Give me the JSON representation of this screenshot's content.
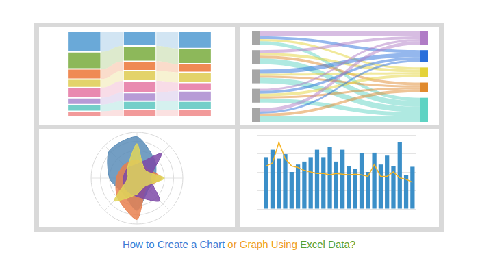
{
  "caption": [
    {
      "text": "How to Create a Chart",
      "color": "#3a7bd5"
    },
    {
      "text": "or Graph Using",
      "color": "#f0a020"
    },
    {
      "text": "Excel Data?",
      "color": "#5aa02c"
    }
  ],
  "chart_data": [
    {
      "type": "alluvial",
      "stacked": true,
      "grid": false,
      "tick_labels": false,
      "categories": [
        null,
        null,
        null
      ],
      "ylim": [
        0,
        100
      ],
      "yticks": [
        0,
        100
      ],
      "series": [
        {
          "color": "#6aa9d8",
          "values": [
            24,
            17,
            20
          ]
        },
        {
          "color": "#8db85a",
          "values": [
            20,
            18,
            18
          ]
        },
        {
          "color": "#ef8a54",
          "values": [
            12,
            11,
            10
          ]
        },
        {
          "color": "#e3d36a",
          "values": [
            10,
            12,
            12
          ]
        },
        {
          "color": "#e98ab0",
          "values": [
            12,
            14,
            10
          ]
        },
        {
          "color": "#b79bd6",
          "values": [
            8,
            10,
            12
          ]
        },
        {
          "color": "#74cfc9",
          "values": [
            8,
            10,
            10
          ]
        },
        {
          "color": "#f29a9a",
          "values": [
            6,
            8,
            8
          ]
        }
      ]
    },
    {
      "type": "sankey",
      "sources": [
        {
          "color": "#a6a6a6"
        },
        {
          "color": "#a6a6a6"
        },
        {
          "color": "#a6a6a6"
        },
        {
          "color": "#a6a6a6"
        },
        {
          "color": "#a6a6a6"
        }
      ],
      "targets": [
        {
          "color": "#b07cc6"
        },
        {
          "color": "#2a6fdb"
        },
        {
          "color": "#e4d33a"
        },
        {
          "color": "#e08a2e"
        },
        {
          "color": "#5fd3c3"
        }
      ],
      "links": [
        {
          "source": 0,
          "target": 0,
          "value": 8
        },
        {
          "source": 0,
          "target": 1,
          "value": 4
        },
        {
          "source": 0,
          "target": 2,
          "value": 3
        },
        {
          "source": 0,
          "target": 4,
          "value": 5
        },
        {
          "source": 1,
          "target": 0,
          "value": 4
        },
        {
          "source": 1,
          "target": 2,
          "value": 4
        },
        {
          "source": 1,
          "target": 3,
          "value": 4
        },
        {
          "source": 1,
          "target": 4,
          "value": 8
        },
        {
          "source": 2,
          "target": 1,
          "value": 6
        },
        {
          "source": 2,
          "target": 2,
          "value": 3
        },
        {
          "source": 2,
          "target": 3,
          "value": 3
        },
        {
          "source": 2,
          "target": 4,
          "value": 8
        },
        {
          "source": 3,
          "target": 0,
          "value": 3
        },
        {
          "source": 3,
          "target": 1,
          "value": 4
        },
        {
          "source": 3,
          "target": 2,
          "value": 4
        },
        {
          "source": 3,
          "target": 3,
          "value": 3
        },
        {
          "source": 3,
          "target": 4,
          "value": 6
        },
        {
          "source": 4,
          "target": 0,
          "value": 5
        },
        {
          "source": 4,
          "target": 1,
          "value": 3
        },
        {
          "source": 4,
          "target": 3,
          "value": 4
        },
        {
          "source": 4,
          "target": 4,
          "value": 8
        }
      ]
    },
    {
      "type": "radar",
      "grid": true,
      "tick_labels": false,
      "categories": [
        null,
        null,
        null,
        null,
        null,
        null,
        null,
        null
      ],
      "ylim": [
        0,
        100
      ],
      "yticks": [
        0,
        20,
        40,
        60,
        80,
        100
      ],
      "series": [
        {
          "color": "#5b8db8",
          "values": [
            90,
            55,
            40,
            35,
            70,
            45,
            60,
            85
          ]
        },
        {
          "color": "#e9804f",
          "values": [
            40,
            30,
            55,
            30,
            90,
            60,
            45,
            40
          ]
        },
        {
          "color": "#7e4aa8",
          "values": [
            30,
            75,
            30,
            70,
            40,
            35,
            30,
            30
          ]
        },
        {
          "color": "#e0d65a",
          "values": [
            75,
            25,
            60,
            25,
            35,
            70,
            20,
            30
          ]
        }
      ]
    },
    {
      "type": "bar",
      "grid": true,
      "tick_labels": false,
      "categories": [
        null,
        null,
        null,
        null,
        null,
        null,
        null,
        null,
        null,
        null,
        null,
        null,
        null,
        null,
        null,
        null,
        null,
        null,
        null,
        null,
        null,
        null,
        null,
        null
      ],
      "ylim": [
        0,
        100
      ],
      "yticks": [
        0,
        25,
        50,
        75,
        100
      ],
      "y2lim": [
        0,
        100
      ],
      "y2ticks": [
        0,
        25,
        50,
        75,
        100
      ],
      "series": [
        {
          "type": "bar",
          "color": "#3b8fc8",
          "values": [
            70,
            80,
            68,
            74,
            50,
            60,
            64,
            70,
            80,
            70,
            84,
            64,
            80,
            58,
            54,
            75,
            50,
            76,
            60,
            72,
            58,
            90,
            46,
            57
          ]
        },
        {
          "type": "line",
          "axis": "y2",
          "color": "#f5b324",
          "values": [
            58,
            62,
            90,
            68,
            58,
            56,
            52,
            50,
            48,
            48,
            46,
            48,
            47,
            46,
            47,
            46,
            44,
            60,
            44,
            44,
            50,
            42,
            40,
            36
          ]
        }
      ]
    }
  ]
}
